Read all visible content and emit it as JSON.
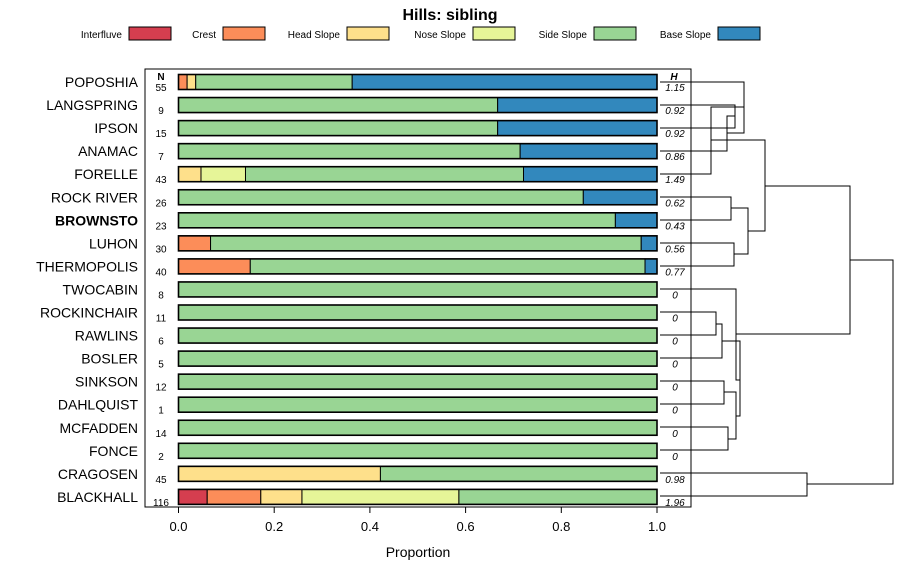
{
  "chart_data": {
    "type": "bar",
    "orientation": "horizontal",
    "stacked": true,
    "title": "Hills: sibling",
    "xlabel": "Proportion",
    "xlim": [
      0,
      1
    ],
    "x_ticks": [
      "0.0",
      "0.2",
      "0.4",
      "0.6",
      "0.8",
      "1.0"
    ],
    "n_header": "N",
    "h_header": "H",
    "legend": [
      "Interfluve",
      "Crest",
      "Head Slope",
      "Nose Slope",
      "Side Slope",
      "Base Slope"
    ],
    "colors": [
      "#d53e4f",
      "#fc8d59",
      "#fee08b",
      "#e6f598",
      "#99d594",
      "#3288bd"
    ],
    "rows": [
      {
        "label": "POPOSHIA",
        "n": "55",
        "h": "1.15",
        "bold": false,
        "values": [
          0,
          0.018,
          0.018,
          0,
          0.327,
          0.637
        ]
      },
      {
        "label": "LANGSPRING",
        "n": "9",
        "h": "0.92",
        "bold": false,
        "values": [
          0,
          0,
          0,
          0,
          0.667,
          0.333
        ]
      },
      {
        "label": "IPSON",
        "n": "15",
        "h": "0.92",
        "bold": false,
        "values": [
          0,
          0,
          0,
          0,
          0.667,
          0.333
        ]
      },
      {
        "label": "ANAMAC",
        "n": "7",
        "h": "0.86",
        "bold": false,
        "values": [
          0,
          0,
          0,
          0,
          0.714,
          0.286
        ]
      },
      {
        "label": "FORELLE",
        "n": "43",
        "h": "1.49",
        "bold": false,
        "values": [
          0,
          0,
          0.047,
          0.093,
          0.581,
          0.279
        ]
      },
      {
        "label": "ROCK RIVER",
        "n": "26",
        "h": "0.62",
        "bold": false,
        "values": [
          0,
          0,
          0,
          0,
          0.846,
          0.154
        ]
      },
      {
        "label": "BROWNSTO",
        "n": "23",
        "h": "0.43",
        "bold": true,
        "values": [
          0,
          0,
          0,
          0,
          0.913,
          0.087
        ]
      },
      {
        "label": "LUHON",
        "n": "30",
        "h": "0.56",
        "bold": false,
        "values": [
          0,
          0.067,
          0,
          0,
          0.9,
          0.033
        ]
      },
      {
        "label": "THERMOPOLIS",
        "n": "40",
        "h": "0.77",
        "bold": false,
        "values": [
          0,
          0.15,
          0,
          0,
          0.825,
          0.025
        ]
      },
      {
        "label": "TWOCABIN",
        "n": "8",
        "h": "0",
        "bold": false,
        "values": [
          0,
          0,
          0,
          0,
          1,
          0
        ]
      },
      {
        "label": "ROCKINCHAIR",
        "n": "11",
        "h": "0",
        "bold": false,
        "values": [
          0,
          0,
          0,
          0,
          1,
          0
        ]
      },
      {
        "label": "RAWLINS",
        "n": "6",
        "h": "0",
        "bold": false,
        "values": [
          0,
          0,
          0,
          0,
          1,
          0
        ]
      },
      {
        "label": "BOSLER",
        "n": "5",
        "h": "0",
        "bold": false,
        "values": [
          0,
          0,
          0,
          0,
          1,
          0
        ]
      },
      {
        "label": "SINKSON",
        "n": "12",
        "h": "0",
        "bold": false,
        "values": [
          0,
          0,
          0,
          0,
          1,
          0
        ]
      },
      {
        "label": "DAHLQUIST",
        "n": "1",
        "h": "0",
        "bold": false,
        "values": [
          0,
          0,
          0,
          0,
          1,
          0
        ]
      },
      {
        "label": "MCFADDEN",
        "n": "14",
        "h": "0",
        "bold": false,
        "values": [
          0,
          0,
          0,
          0,
          1,
          0
        ]
      },
      {
        "label": "FONCE",
        "n": "2",
        "h": "0",
        "bold": false,
        "values": [
          0,
          0,
          0,
          0,
          1,
          0
        ]
      },
      {
        "label": "CRAGOSEN",
        "n": "45",
        "h": "0.98",
        "bold": false,
        "values": [
          0,
          0,
          0.422,
          0,
          0.578,
          0
        ]
      },
      {
        "label": "BLACKHALL",
        "n": "116",
        "h": "1.96",
        "bold": false,
        "values": [
          0.06,
          0.112,
          0.086,
          0.328,
          0.414,
          0
        ]
      }
    ]
  }
}
